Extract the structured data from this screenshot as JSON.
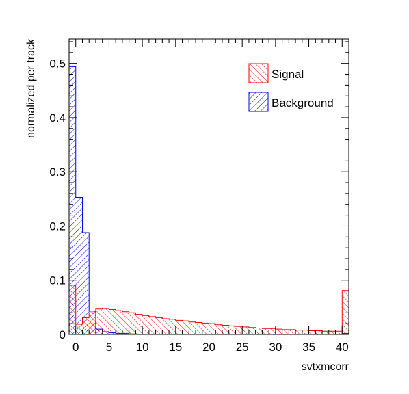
{
  "chart_data": {
    "type": "bar",
    "title": "",
    "xlabel": "svtxmcorr",
    "ylabel": "normalized per track",
    "xlim": [
      -1,
      41
    ],
    "ylim": [
      0,
      0.545
    ],
    "bin_width": 1,
    "x_ticks": [
      0,
      5,
      10,
      15,
      20,
      25,
      30,
      35,
      40
    ],
    "x_tick_labels": [
      "0",
      "5",
      "10",
      "15",
      "20",
      "25",
      "30",
      "35",
      "40"
    ],
    "y_ticks": [
      0,
      0.1,
      0.2,
      0.3,
      0.4,
      0.5
    ],
    "y_tick_labels": [
      "0",
      "0.1",
      "0.2",
      "0.3",
      "0.4",
      "0.5"
    ],
    "grid": false,
    "legend_position": "top-right",
    "series": [
      {
        "name": "Signal",
        "color": "#ff0000",
        "bin_low_edges": [
          -1,
          0,
          1,
          2,
          3,
          4,
          5,
          6,
          7,
          8,
          9,
          10,
          11,
          12,
          13,
          14,
          15,
          16,
          17,
          18,
          19,
          20,
          21,
          22,
          23,
          24,
          25,
          26,
          27,
          28,
          29,
          30,
          31,
          32,
          33,
          34,
          35,
          36,
          37,
          38,
          39,
          40
        ],
        "values": [
          0.091,
          0.019,
          0.031,
          0.04,
          0.047,
          0.048,
          0.046,
          0.044,
          0.042,
          0.04,
          0.037,
          0.035,
          0.033,
          0.031,
          0.029,
          0.028,
          0.026,
          0.025,
          0.023,
          0.022,
          0.021,
          0.02,
          0.018,
          0.017,
          0.016,
          0.015,
          0.014,
          0.013,
          0.012,
          0.011,
          0.011,
          0.01,
          0.009,
          0.009,
          0.008,
          0.008,
          0.007,
          0.007,
          0.006,
          0.006,
          0.006,
          0.081
        ]
      },
      {
        "name": "Background",
        "color": "#0000ff",
        "bin_low_edges": [
          -1,
          0,
          1,
          2,
          3,
          4,
          5,
          6,
          7,
          8,
          9,
          10,
          11,
          12,
          13,
          14,
          15,
          16,
          17,
          18,
          19,
          20,
          21,
          22,
          23,
          24,
          25,
          26,
          27,
          28,
          29,
          30,
          31,
          32,
          33,
          34,
          35,
          36,
          37,
          38,
          39,
          40
        ],
        "values": [
          0.494,
          0.253,
          0.188,
          0.043,
          0.01,
          0.005,
          0.003,
          0.002,
          0.002,
          0.001,
          0,
          0,
          0,
          0,
          0,
          0,
          0,
          0,
          0,
          0,
          0,
          0,
          0,
          0,
          0,
          0,
          0,
          0,
          0,
          0,
          0,
          0,
          0,
          0,
          0,
          0,
          0,
          0,
          0,
          0,
          0,
          0.002
        ]
      }
    ]
  }
}
